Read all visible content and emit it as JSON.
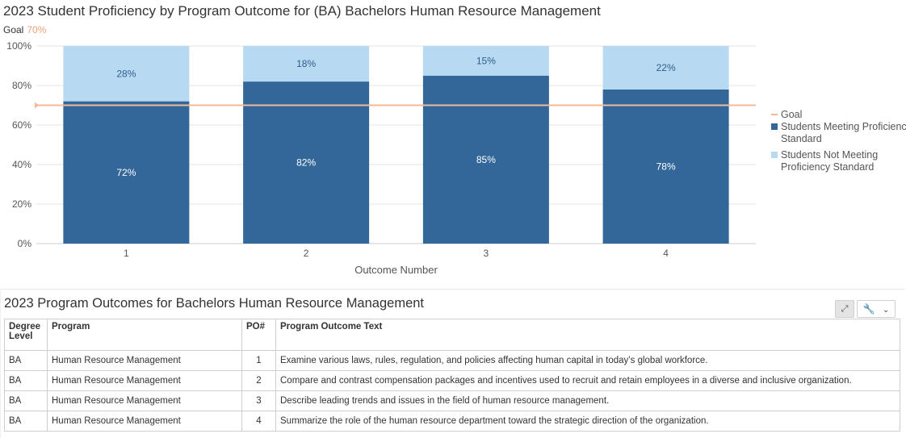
{
  "chart": {
    "title": "2023 Student Proficiency by Program Outcome for (BA) Bachelors Human Resource Management",
    "goal_label": "Goal",
    "goal_value": "70%"
  },
  "chart_data": {
    "type": "bar",
    "stacked": true,
    "categories": [
      "1",
      "2",
      "3",
      "4"
    ],
    "series": [
      {
        "name": "Students Meeting Proficiency Standard",
        "values": [
          72,
          82,
          85,
          78
        ],
        "color": "#336699"
      },
      {
        "name": "Students Not Meeting Proficiency Standard",
        "values": [
          28,
          18,
          15,
          22
        ],
        "color": "#b8d9f2"
      }
    ],
    "goal": {
      "name": "Goal",
      "value": 70,
      "color": "#f2b999"
    },
    "xlabel": "Outcome Number",
    "ylabel": "",
    "ylim": [
      0,
      100
    ],
    "yticks": [
      "0%",
      "20%",
      "40%",
      "60%",
      "80%",
      "100%"
    ],
    "legend_position": "right",
    "grid": true
  },
  "table": {
    "title": "2023 Program Outcomes for Bachelors Human Resource Management",
    "headers": [
      "Degree Level",
      "Program",
      "PO#",
      "Program Outcome Text"
    ],
    "rows": [
      [
        "BA",
        "Human Resource Management",
        "1",
        "Examine various laws, rules, regulation, and policies affecting human capital in today’s global workforce."
      ],
      [
        "BA",
        "Human Resource Management",
        "2",
        "Compare and contrast compensation packages and incentives used to recruit and retain employees in a diverse and inclusive organization."
      ],
      [
        "BA",
        "Human Resource Management",
        "3",
        "Describe leading trends and issues in the field of human resource management."
      ],
      [
        "BA",
        "Human Resource Management",
        "4",
        "Summarize the role of the human resource department toward the strategic direction of the organization."
      ]
    ]
  },
  "toolbar": {
    "expand_icon": "expand-icon",
    "wrench_icon": "wrench-icon",
    "chevron_icon": "chevron-down-icon"
  }
}
